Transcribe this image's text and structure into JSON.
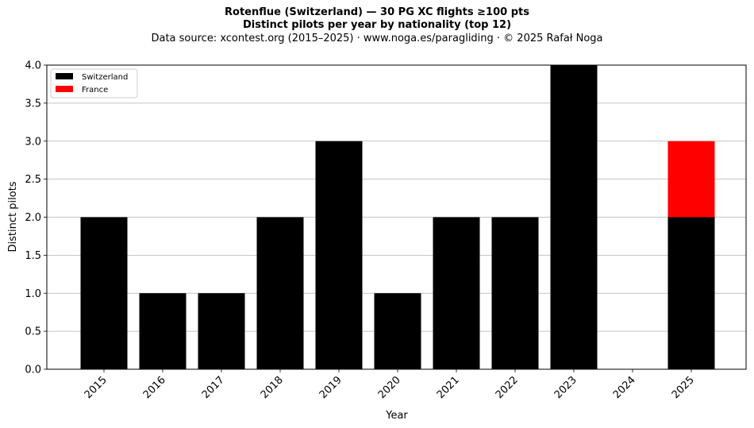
{
  "chart_data": {
    "type": "bar",
    "stacked": true,
    "title": "Rotenflue (Switzerland)  —  30 PG XC flights ≥100 pts",
    "subtitle": "Distinct pilots per year by nationality (top 12)",
    "source": "Data source: xcontest.org (2015–2025)  ·  www.noga.es/paragliding  ·  © 2025 Rafał Noga",
    "xlabel": "Year",
    "ylabel": "Distinct pilots",
    "ylim": [
      0,
      4.0
    ],
    "yticks": [
      "0.0",
      "0.5",
      "1.0",
      "1.5",
      "2.0",
      "2.5",
      "3.0",
      "3.5",
      "4.0"
    ],
    "grid": "horizontal",
    "legend_position": "top-left",
    "categories": [
      "2015",
      "2016",
      "2017",
      "2018",
      "2019",
      "2020",
      "2021",
      "2022",
      "2023",
      "2024",
      "2025"
    ],
    "series": [
      {
        "name": "Switzerland",
        "color": "#000000",
        "values": [
          2,
          1,
          1,
          2,
          3,
          1,
          2,
          2,
          4,
          0,
          2
        ]
      },
      {
        "name": "France",
        "color": "#ff0000",
        "values": [
          0,
          0,
          0,
          0,
          0,
          0,
          0,
          0,
          0,
          0,
          1
        ]
      }
    ]
  }
}
